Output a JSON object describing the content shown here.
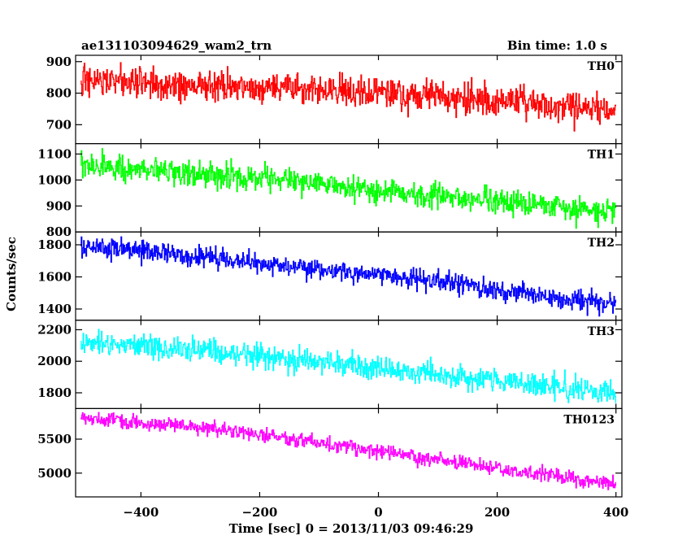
{
  "chart_data": {
    "type": "line",
    "title": "ae131103094629_wam2_trn",
    "bin_time": "Bin time: 1.0 s",
    "xlabel": "Time [sec] 0 = 2013/11/03 09:46:29",
    "ylabel": "Counts/sec",
    "xlim": [
      -510,
      410
    ],
    "x_ticks": [
      -400,
      -200,
      0,
      200,
      400
    ],
    "x_tick_labels": [
      "−400",
      "−200",
      "0",
      "200",
      "400"
    ],
    "x_start": -500,
    "x_end": 400,
    "x_step": 1,
    "panels": [
      {
        "name": "TH0",
        "color": "#ff0000",
        "ylim": [
          640,
          920
        ],
        "y_ticks": [
          700,
          800,
          900
        ],
        "y_tick_labels": [
          "700",
          "800",
          "900"
        ],
        "trend": [
          [
            -500,
            840
          ],
          [
            -300,
            825
          ],
          [
            -100,
            810
          ],
          [
            100,
            790
          ],
          [
            400,
            745
          ]
        ],
        "noise": 35
      },
      {
        "name": "TH1",
        "color": "#00ff00",
        "ylim": [
          800,
          1140
        ],
        "y_ticks": [
          800,
          900,
          1000,
          1100
        ],
        "y_tick_labels": [
          "800",
          "900",
          "1000",
          "1100"
        ],
        "trend": [
          [
            -500,
            1055
          ],
          [
            -300,
            1025
          ],
          [
            -100,
            985
          ],
          [
            100,
            940
          ],
          [
            400,
            875
          ]
        ],
        "noise": 35
      },
      {
        "name": "TH2",
        "color": "#0000ff",
        "ylim": [
          1330,
          1880
        ],
        "y_ticks": [
          1400,
          1600,
          1800
        ],
        "y_tick_labels": [
          "1400",
          "1600",
          "1800"
        ],
        "trend": [
          [
            -500,
            1790
          ],
          [
            -300,
            1730
          ],
          [
            -100,
            1650
          ],
          [
            100,
            1570
          ],
          [
            400,
            1420
          ]
        ],
        "noise": 45
      },
      {
        "name": "TH3",
        "color": "#00ffff",
        "ylim": [
          1700,
          2260
        ],
        "y_ticks": [
          1800,
          2000,
          2200
        ],
        "y_tick_labels": [
          "1800",
          "2000",
          "2200"
        ],
        "trend": [
          [
            -500,
            2130
          ],
          [
            -300,
            2070
          ],
          [
            -100,
            1995
          ],
          [
            100,
            1915
          ],
          [
            400,
            1800
          ]
        ],
        "noise": 55
      },
      {
        "name": "TH0123",
        "color": "#ff00ff",
        "ylim": [
          4650,
          5950
        ],
        "y_ticks": [
          5000,
          5500
        ],
        "y_tick_labels": [
          "5000",
          "5500"
        ],
        "trend": [
          [
            -500,
            5820
          ],
          [
            -300,
            5680
          ],
          [
            -100,
            5450
          ],
          [
            100,
            5200
          ],
          [
            400,
            4830
          ]
        ],
        "noise": 75
      }
    ]
  }
}
